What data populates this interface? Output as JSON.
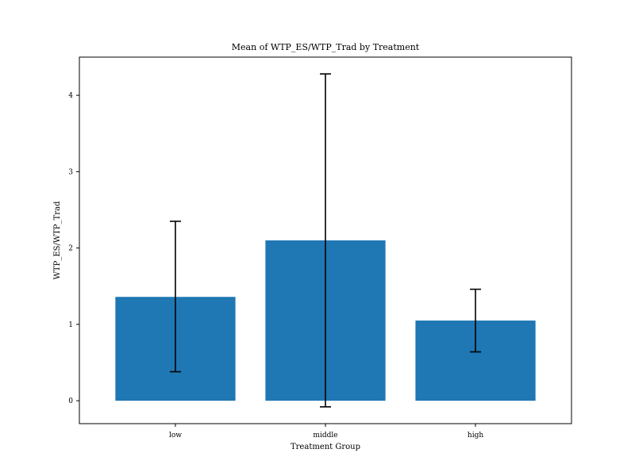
{
  "chart_data": {
    "type": "bar",
    "title": "Mean of WTP_ES/WTP_Trad by Treatment",
    "xlabel": "Treatment Group",
    "ylabel": "WTP_ES/WTP_Trad",
    "categories": [
      "low",
      "middle",
      "high"
    ],
    "values": [
      1.36,
      2.1,
      1.05
    ],
    "error_low": [
      0.38,
      -0.08,
      0.64
    ],
    "error_high": [
      2.35,
      4.28,
      1.46
    ],
    "ylim": [
      -0.3,
      4.5
    ],
    "yticks": [
      "0",
      "1",
      "2",
      "3",
      "4"
    ],
    "bar_color": "#1f77b4",
    "grid": false,
    "legend": "none"
  }
}
